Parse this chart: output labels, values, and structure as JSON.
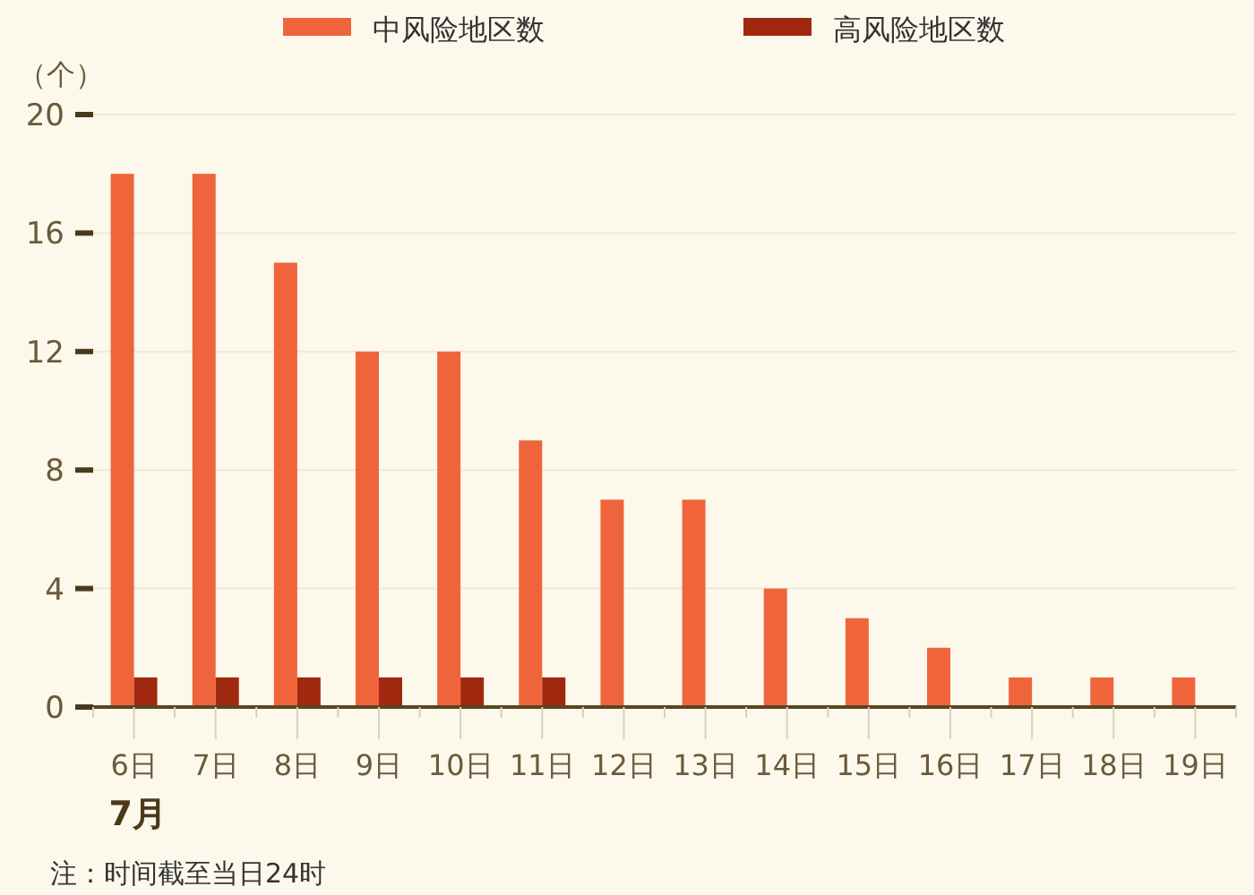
{
  "chart_data": {
    "type": "bar",
    "ylabel": "（个）",
    "xlabel": "7月",
    "categories": [
      "6日",
      "7日",
      "8日",
      "9日",
      "10日",
      "11日",
      "12日",
      "13日",
      "14日",
      "15日",
      "16日",
      "17日",
      "18日",
      "19日"
    ],
    "series": [
      {
        "name": "中风险地区数",
        "color": "#f0643c",
        "values": [
          18,
          18,
          15,
          12,
          12,
          9,
          7,
          7,
          4,
          3,
          2,
          1,
          1,
          1
        ]
      },
      {
        "name": "高风险地区数",
        "color": "#a0280f",
        "values": [
          1,
          1,
          1,
          1,
          1,
          1,
          0,
          0,
          0,
          0,
          0,
          0,
          0,
          0
        ]
      }
    ],
    "ylim": [
      0,
      20
    ],
    "yticks": [
      0,
      4,
      8,
      12,
      16,
      20
    ],
    "grid": "y",
    "legend": "top",
    "annotations": [
      "注：时间截至当日24时"
    ]
  }
}
